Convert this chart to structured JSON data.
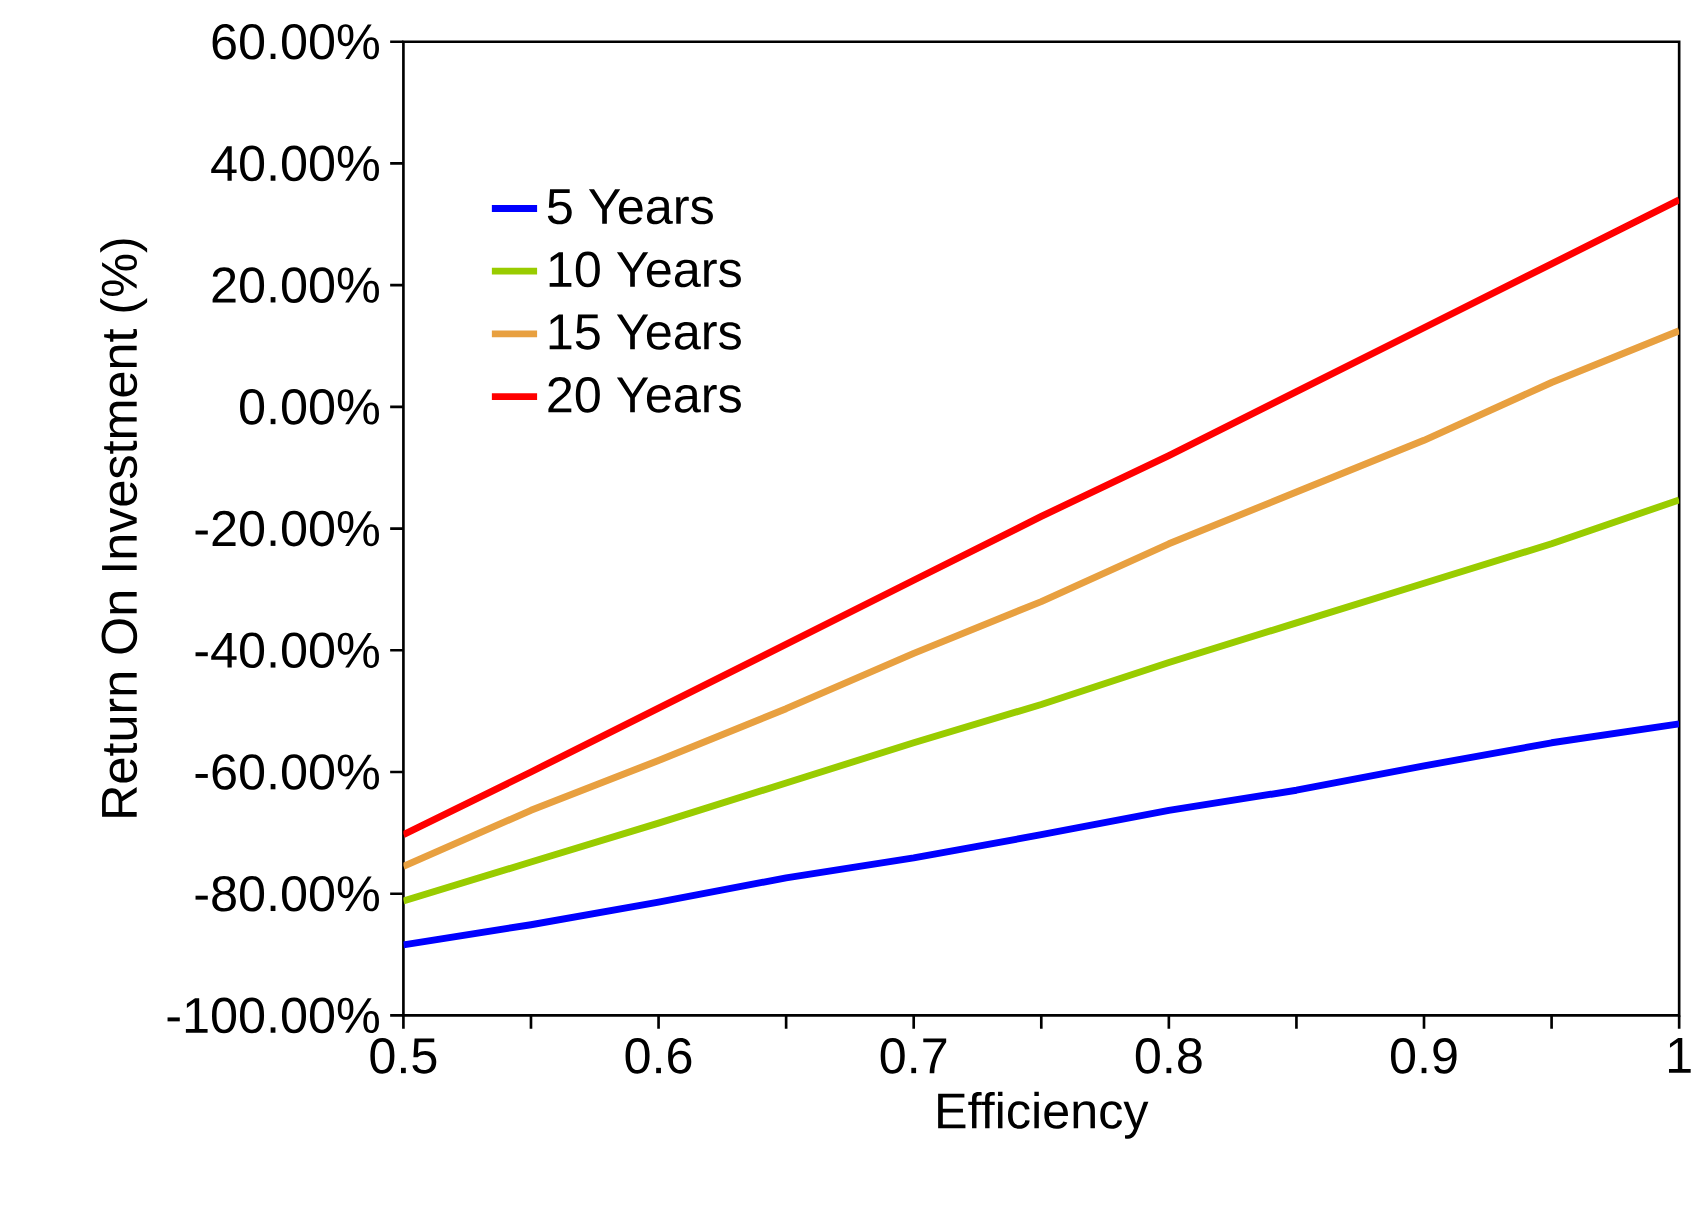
{
  "chart_data": {
    "type": "line",
    "xlabel": "Efficiency",
    "ylabel": "Return On Investment (%)",
    "x": [
      0.5,
      0.55,
      0.6,
      0.65,
      0.7,
      0.75,
      0.8,
      0.85,
      0.9,
      0.95,
      1.0
    ],
    "series": [
      {
        "name": "5 Years",
        "color": "#0000ff",
        "values": [
          -88.4,
          -85.1,
          -81.4,
          -77.4,
          -74.1,
          -70.3,
          -66.3,
          -63.0,
          -59.0,
          -55.2,
          -52.1
        ]
      },
      {
        "name": "10 Years",
        "color": "#99cc00",
        "values": [
          -81.2,
          -74.8,
          -68.4,
          -61.8,
          -55.2,
          -48.9,
          -42.0,
          -35.5,
          -29.0,
          -22.5,
          -15.3
        ]
      },
      {
        "name": "15 Years",
        "color": "#e8a040",
        "values": [
          -75.5,
          -66.3,
          -58.1,
          -49.6,
          -40.5,
          -32.0,
          -22.5,
          -14.0,
          -5.5,
          4.0,
          12.5
        ]
      },
      {
        "name": "20 Years",
        "color": "#ff0000",
        "values": [
          -70.3,
          -60.0,
          -49.5,
          -39.0,
          -28.5,
          -18.0,
          -8.0,
          2.5,
          13.0,
          23.5,
          34.0
        ]
      }
    ],
    "xlim": [
      0.5,
      1.0
    ],
    "xticks": [
      0.5,
      {
        "value": 0.55,
        "label": null
      },
      0.6,
      {
        "value": 0.65,
        "label": null
      },
      0.7,
      {
        "value": 0.75,
        "label": null
      },
      0.8,
      {
        "value": 0.85,
        "label": null
      },
      0.9,
      {
        "value": 0.95,
        "label": null
      },
      1
    ],
    "ylim": [
      -100,
      60
    ],
    "yticks": [
      {
        "value": -100,
        "label": "-100.00%"
      },
      {
        "value": -80,
        "label": "-80.00%"
      },
      {
        "value": -60,
        "label": "-60.00%"
      },
      {
        "value": -40,
        "label": "-40.00%"
      },
      {
        "value": -20,
        "label": "-20.00%"
      },
      {
        "value": 0,
        "label": "0.00%"
      },
      {
        "value": 20,
        "label": "20.00%"
      },
      {
        "value": 40,
        "label": "40.00%"
      },
      {
        "value": 60,
        "label": "60.00%"
      }
    ],
    "legend": "top left",
    "grid": false,
    "marker": "none",
    "line_style": "solid"
  }
}
